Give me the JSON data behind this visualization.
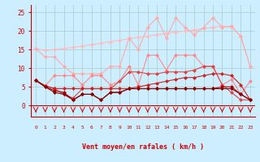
{
  "bg_color": "#cceeff",
  "grid_color": "#aacccc",
  "xlabel": "Vent moyen/en rafales ( km/h )",
  "xlabel_color": "#cc0000",
  "yticks": [
    0,
    5,
    10,
    15,
    20,
    25
  ],
  "xlim": [
    -0.5,
    23.5
  ],
  "ylim": [
    -3,
    27
  ],
  "line_smooth": [
    15.2,
    14.8,
    15.0,
    15.3,
    15.6,
    16.0,
    16.3,
    16.7,
    17.1,
    17.5,
    17.9,
    18.3,
    18.6,
    19.0,
    19.3,
    19.7,
    20.0,
    20.3,
    20.6,
    21.0,
    21.3,
    21.0,
    18.5,
    10.5
  ],
  "line_smooth_color": "#ffbbbb",
  "line_jagged": [
    15.2,
    13.0,
    13.0,
    10.5,
    8.5,
    8.5,
    8.5,
    8.5,
    10.5,
    10.5,
    18.0,
    15.0,
    21.0,
    23.5,
    18.0,
    23.5,
    21.0,
    19.0,
    21.0,
    23.5,
    21.0,
    21.3,
    18.5,
    10.5
  ],
  "line_jagged_color": "#ffaaaa",
  "line_mid": [
    6.7,
    5.3,
    8.0,
    8.0,
    8.0,
    5.5,
    8.0,
    8.0,
    5.5,
    6.5,
    10.5,
    5.5,
    13.5,
    13.5,
    9.5,
    13.5,
    13.5,
    13.5,
    10.5,
    10.5,
    5.5,
    7.0,
    3.0,
    6.5
  ],
  "line_mid_color": "#ff8888",
  "line_lower": [
    6.7,
    5.3,
    4.5,
    3.0,
    2.0,
    4.5,
    4.5,
    4.5,
    4.5,
    6.5,
    9.0,
    9.0,
    8.5,
    8.5,
    9.0,
    9.0,
    9.0,
    9.5,
    10.5,
    10.5,
    5.5,
    3.5,
    1.5,
    1.5
  ],
  "line_lower_color": "#dd4444",
  "line_bottom": [
    6.7,
    5.3,
    4.5,
    4.5,
    4.5,
    4.5,
    4.5,
    4.5,
    4.5,
    4.5,
    4.5,
    5.0,
    5.5,
    6.0,
    6.5,
    7.0,
    7.5,
    7.5,
    8.0,
    8.5,
    8.5,
    8.0,
    5.5,
    1.5
  ],
  "line_bottom_color": "#cc2222",
  "line_dark1": [
    6.7,
    5.0,
    4.0,
    3.5,
    1.5,
    3.0,
    3.0,
    1.5,
    3.5,
    3.5,
    4.5,
    4.5,
    4.5,
    4.5,
    4.5,
    4.5,
    4.5,
    4.5,
    4.5,
    4.5,
    5.0,
    5.0,
    3.0,
    1.5
  ],
  "line_dark1_color": "#aa0000",
  "line_dark2": [
    6.7,
    5.0,
    3.5,
    3.0,
    1.5,
    3.0,
    3.0,
    1.5,
    3.5,
    3.5,
    4.5,
    4.5,
    4.5,
    4.5,
    4.5,
    4.5,
    4.5,
    4.5,
    4.5,
    4.5,
    4.5,
    4.5,
    3.0,
    1.5
  ],
  "line_dark2_color": "#880000",
  "arrow_color": "#cc0000",
  "tick_color": "#cc0000",
  "spine_color": "#cc0000"
}
